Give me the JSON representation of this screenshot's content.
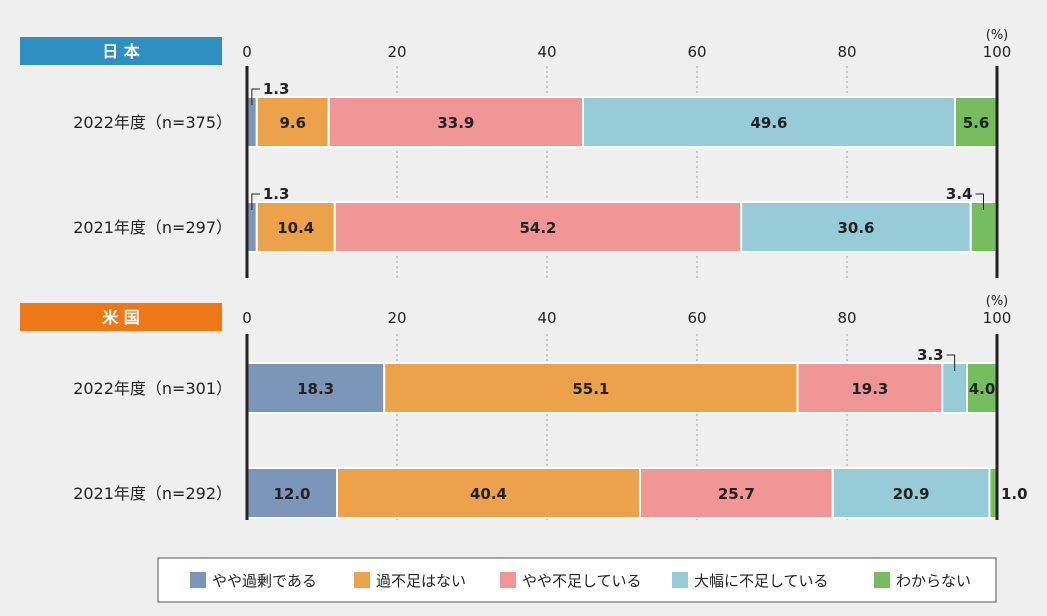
{
  "colors": {
    "background": "#efefef",
    "japan_tag": "#2e8fc0",
    "us_tag": "#ee7718",
    "axis": "#222222",
    "grid": "#888888"
  },
  "chart_data": [
    {
      "type": "bar",
      "stacked": true,
      "orientation": "horizontal",
      "title": "日 本",
      "unit": "(%)",
      "xlim": [
        0,
        100
      ],
      "x_ticks": [
        "0",
        "20",
        "40",
        "60",
        "80",
        "100"
      ],
      "grid": "dashed vertical",
      "categories": [
        "2022年度（n=375）",
        "2021年度（n=297）"
      ],
      "series": [
        {
          "name": "やや過剰である",
          "color": "#7b96b8",
          "values": [
            1.3,
            1.3
          ]
        },
        {
          "name": "過不足はない",
          "color": "#eca24a",
          "values": [
            9.6,
            10.4
          ]
        },
        {
          "name": "やや不足している",
          "color": "#f09697",
          "values": [
            33.9,
            54.2
          ]
        },
        {
          "name": "大幅に不足している",
          "color": "#96cbd7",
          "values": [
            49.6,
            30.6
          ]
        },
        {
          "name": "わからない",
          "color": "#75bd5e",
          "values": [
            5.6,
            3.4
          ]
        }
      ]
    },
    {
      "type": "bar",
      "stacked": true,
      "orientation": "horizontal",
      "title": "米 国",
      "unit": "(%)",
      "xlim": [
        0,
        100
      ],
      "x_ticks": [
        "0",
        "20",
        "40",
        "60",
        "80",
        "100"
      ],
      "grid": "dashed vertical",
      "categories": [
        "2022年度（n=301）",
        "2021年度（n=292）"
      ],
      "series": [
        {
          "name": "やや過剰である",
          "color": "#7b96b8",
          "values": [
            18.3,
            12.0
          ]
        },
        {
          "name": "過不足はない",
          "color": "#eca24a",
          "values": [
            55.1,
            40.4
          ]
        },
        {
          "name": "やや不足している",
          "color": "#f09697",
          "values": [
            19.3,
            25.7
          ]
        },
        {
          "name": "大幅に不足している",
          "color": "#96cbd7",
          "values": [
            3.3,
            20.9
          ]
        },
        {
          "name": "わからない",
          "color": "#75bd5e",
          "values": [
            4.0,
            1.0
          ]
        }
      ]
    }
  ],
  "legend": {
    "position": "bottom",
    "items": [
      {
        "label": "やや過剰である",
        "color": "#7b96b8"
      },
      {
        "label": "過不足はない",
        "color": "#eca24a"
      },
      {
        "label": "やや不足している",
        "color": "#f09697"
      },
      {
        "label": "大幅に不足している",
        "color": "#96cbd7"
      },
      {
        "label": "わからない",
        "color": "#75bd5e"
      }
    ]
  }
}
